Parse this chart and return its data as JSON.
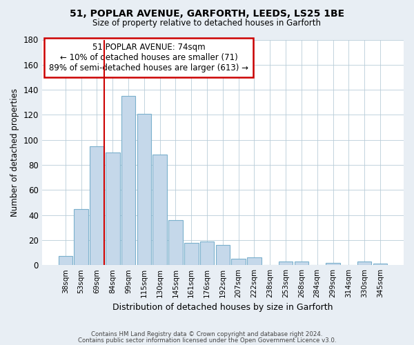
{
  "title": "51, POPLAR AVENUE, GARFORTH, LEEDS, LS25 1BE",
  "subtitle": "Size of property relative to detached houses in Garforth",
  "xlabel": "Distribution of detached houses by size in Garforth",
  "ylabel": "Number of detached properties",
  "bar_labels": [
    "38sqm",
    "53sqm",
    "69sqm",
    "84sqm",
    "99sqm",
    "115sqm",
    "130sqm",
    "145sqm",
    "161sqm",
    "176sqm",
    "192sqm",
    "207sqm",
    "222sqm",
    "238sqm",
    "253sqm",
    "268sqm",
    "284sqm",
    "299sqm",
    "314sqm",
    "330sqm",
    "345sqm"
  ],
  "bar_heights": [
    7,
    45,
    95,
    90,
    135,
    121,
    88,
    36,
    18,
    19,
    16,
    5,
    6,
    0,
    3,
    3,
    0,
    2,
    0,
    3,
    1
  ],
  "bar_color": "#c5d8ea",
  "bar_edge_color": "#7ab0cc",
  "ylim": [
    0,
    180
  ],
  "yticks": [
    0,
    20,
    40,
    60,
    80,
    100,
    120,
    140,
    160,
    180
  ],
  "vline_color": "#cc0000",
  "annotation_title": "51 POPLAR AVENUE: 74sqm",
  "annotation_line1": "← 10% of detached houses are smaller (71)",
  "annotation_line2": "89% of semi-detached houses are larger (613) →",
  "annotation_box_color": "#cc0000",
  "footer_line1": "Contains HM Land Registry data © Crown copyright and database right 2024.",
  "footer_line2": "Contains public sector information licensed under the Open Government Licence v3.0.",
  "background_color": "#e8eef4",
  "plot_bg_color": "#ffffff"
}
